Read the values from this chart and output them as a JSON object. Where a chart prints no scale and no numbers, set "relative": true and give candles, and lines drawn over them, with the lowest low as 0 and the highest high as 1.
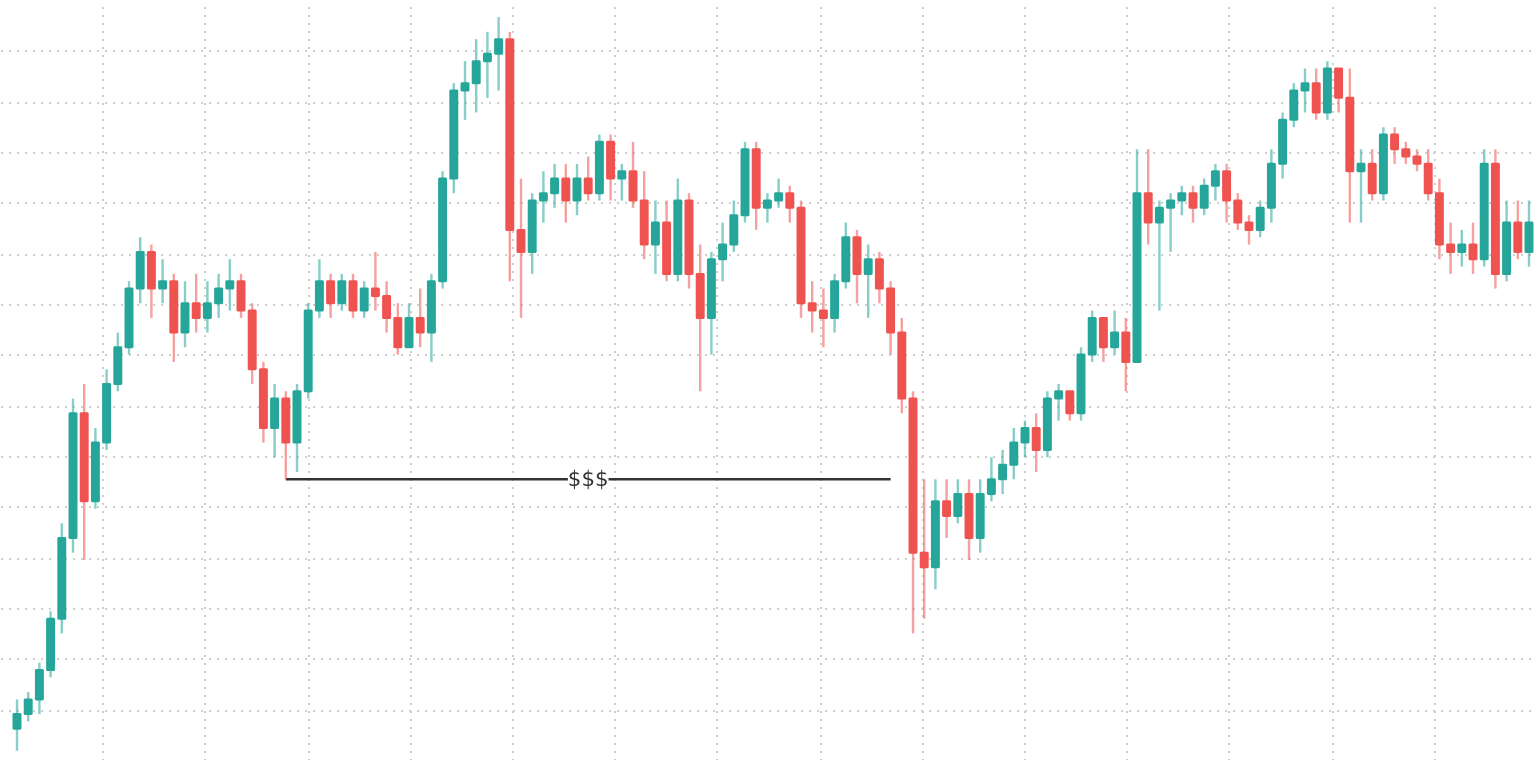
{
  "chart_data": {
    "type": "candlestick",
    "relative": true,
    "grid": true,
    "annotations": [
      "$$$"
    ],
    "categories": [
      null,
      null,
      null,
      null,
      null,
      null,
      null,
      null,
      null,
      null,
      null,
      null,
      null,
      null,
      null,
      null,
      null,
      null,
      null,
      null,
      null,
      null,
      null,
      null,
      null,
      null,
      null,
      null,
      null,
      null,
      null,
      null,
      null,
      null,
      null,
      null,
      null,
      null,
      null,
      null,
      null,
      null,
      null,
      null,
      null,
      null,
      null,
      null,
      null,
      null,
      null,
      null,
      null,
      null,
      null,
      null,
      null,
      null,
      null,
      null,
      null,
      null,
      null,
      null,
      null,
      null,
      null,
      null,
      null,
      null,
      null,
      null,
      null,
      null,
      null,
      null,
      null,
      null,
      null,
      null,
      null,
      null,
      null,
      null,
      null,
      null,
      null,
      null,
      null,
      null,
      null,
      null,
      null,
      null,
      null,
      null,
      null,
      null,
      null,
      null,
      null,
      null,
      null,
      null,
      null,
      null,
      null,
      null,
      null,
      null,
      null,
      null,
      null,
      null,
      null,
      null,
      null,
      null,
      null,
      null,
      null,
      null,
      null,
      null,
      null,
      null,
      null,
      null,
      null,
      null,
      null,
      null,
      null,
      null,
      null,
      null
    ],
    "ohlc": [
      [
        0.03,
        0.07,
        0,
        0.05
      ],
      [
        0.05,
        0.08,
        0.04,
        0.07
      ],
      [
        0.07,
        0.12,
        0.05,
        0.11
      ],
      [
        0.11,
        0.19,
        0.1,
        0.18
      ],
      [
        0.18,
        0.31,
        0.16,
        0.29
      ],
      [
        0.29,
        0.48,
        0.27,
        0.46
      ],
      [
        0.46,
        0.5,
        0.26,
        0.34
      ],
      [
        0.34,
        0.44,
        0.33,
        0.42
      ],
      [
        0.42,
        0.52,
        0.41,
        0.5
      ],
      [
        0.5,
        0.57,
        0.49,
        0.55
      ],
      [
        0.55,
        0.64,
        0.54,
        0.63
      ],
      [
        0.63,
        0.7,
        0.61,
        0.68
      ],
      [
        0.68,
        0.69,
        0.59,
        0.63
      ],
      [
        0.63,
        0.67,
        0.61,
        0.64
      ],
      [
        0.64,
        0.65,
        0.53,
        0.57
      ],
      [
        0.57,
        0.64,
        0.55,
        0.61
      ],
      [
        0.61,
        0.65,
        0.57,
        0.59
      ],
      [
        0.59,
        0.64,
        0.57,
        0.61
      ],
      [
        0.61,
        0.65,
        0.59,
        0.63
      ],
      [
        0.63,
        0.67,
        0.6,
        0.64
      ],
      [
        0.64,
        0.65,
        0.59,
        0.6
      ],
      [
        0.6,
        0.61,
        0.5,
        0.52
      ],
      [
        0.52,
        0.53,
        0.42,
        0.44
      ],
      [
        0.44,
        0.5,
        0.4,
        0.48
      ],
      [
        0.48,
        0.49,
        0.37,
        0.42
      ],
      [
        0.42,
        0.5,
        0.38,
        0.49
      ],
      [
        0.49,
        0.61,
        0.48,
        0.6
      ],
      [
        0.6,
        0.67,
        0.59,
        0.64
      ],
      [
        0.64,
        0.65,
        0.59,
        0.61
      ],
      [
        0.61,
        0.65,
        0.6,
        0.64
      ],
      [
        0.64,
        0.65,
        0.59,
        0.6
      ],
      [
        0.6,
        0.64,
        0.59,
        0.63
      ],
      [
        0.63,
        0.68,
        0.6,
        0.62
      ],
      [
        0.62,
        0.64,
        0.57,
        0.59
      ],
      [
        0.59,
        0.61,
        0.54,
        0.55
      ],
      [
        0.55,
        0.61,
        0.55,
        0.59
      ],
      [
        0.59,
        0.63,
        0.55,
        0.57
      ],
      [
        0.57,
        0.65,
        0.53,
        0.64
      ],
      [
        0.64,
        0.79,
        0.63,
        0.78
      ],
      [
        0.78,
        0.91,
        0.76,
        0.9
      ],
      [
        0.9,
        0.94,
        0.86,
        0.91
      ],
      [
        0.91,
        0.97,
        0.87,
        0.94
      ],
      [
        0.94,
        0.98,
        0.89,
        0.95
      ],
      [
        0.95,
        1,
        0.9,
        0.97
      ],
      [
        0.97,
        0.98,
        0.64,
        0.71
      ],
      [
        0.71,
        0.78,
        0.59,
        0.68
      ],
      [
        0.68,
        0.76,
        0.65,
        0.75
      ],
      [
        0.75,
        0.79,
        0.72,
        0.76
      ],
      [
        0.76,
        0.8,
        0.74,
        0.78
      ],
      [
        0.78,
        0.8,
        0.72,
        0.75
      ],
      [
        0.75,
        0.8,
        0.73,
        0.78
      ],
      [
        0.78,
        0.81,
        0.75,
        0.76
      ],
      [
        0.76,
        0.84,
        0.75,
        0.83
      ],
      [
        0.83,
        0.84,
        0.75,
        0.78
      ],
      [
        0.78,
        0.8,
        0.75,
        0.79
      ],
      [
        0.79,
        0.83,
        0.74,
        0.75
      ],
      [
        0.75,
        0.79,
        0.67,
        0.69
      ],
      [
        0.69,
        0.75,
        0.65,
        0.72
      ],
      [
        0.72,
        0.75,
        0.64,
        0.65
      ],
      [
        0.65,
        0.78,
        0.64,
        0.75
      ],
      [
        0.75,
        0.76,
        0.63,
        0.65
      ],
      [
        0.65,
        0.69,
        0.49,
        0.59
      ],
      [
        0.59,
        0.68,
        0.54,
        0.67
      ],
      [
        0.67,
        0.72,
        0.64,
        0.69
      ],
      [
        0.69,
        0.75,
        0.68,
        0.73
      ],
      [
        0.73,
        0.83,
        0.72,
        0.82
      ],
      [
        0.82,
        0.83,
        0.71,
        0.74
      ],
      [
        0.74,
        0.76,
        0.72,
        0.75
      ],
      [
        0.75,
        0.78,
        0.74,
        0.76
      ],
      [
        0.76,
        0.77,
        0.72,
        0.74
      ],
      [
        0.74,
        0.75,
        0.59,
        0.61
      ],
      [
        0.61,
        0.64,
        0.57,
        0.6
      ],
      [
        0.6,
        0.63,
        0.55,
        0.59
      ],
      [
        0.59,
        0.65,
        0.57,
        0.64
      ],
      [
        0.64,
        0.72,
        0.63,
        0.7
      ],
      [
        0.7,
        0.71,
        0.61,
        0.65
      ],
      [
        0.65,
        0.69,
        0.59,
        0.67
      ],
      [
        0.67,
        0.68,
        0.61,
        0.63
      ],
      [
        0.63,
        0.64,
        0.54,
        0.57
      ],
      [
        0.57,
        0.59,
        0.46,
        0.48
      ],
      [
        0.48,
        0.49,
        0.16,
        0.27
      ],
      [
        0.27,
        0.37,
        0.18,
        0.25
      ],
      [
        0.25,
        0.37,
        0.22,
        0.34
      ],
      [
        0.34,
        0.37,
        0.29,
        0.32
      ],
      [
        0.32,
        0.37,
        0.31,
        0.35
      ],
      [
        0.35,
        0.37,
        0.26,
        0.29
      ],
      [
        0.29,
        0.37,
        0.27,
        0.35
      ],
      [
        0.35,
        0.4,
        0.34,
        0.37
      ],
      [
        0.37,
        0.41,
        0.35,
        0.39
      ],
      [
        0.39,
        0.44,
        0.37,
        0.42
      ],
      [
        0.42,
        0.45,
        0.4,
        0.44
      ],
      [
        0.44,
        0.46,
        0.38,
        0.41
      ],
      [
        0.41,
        0.49,
        0.4,
        0.48
      ],
      [
        0.48,
        0.5,
        0.45,
        0.49
      ],
      [
        0.49,
        0.49,
        0.45,
        0.46
      ],
      [
        0.46,
        0.55,
        0.45,
        0.54
      ],
      [
        0.54,
        0.6,
        0.53,
        0.59
      ],
      [
        0.59,
        0.59,
        0.53,
        0.55
      ],
      [
        0.55,
        0.6,
        0.54,
        0.57
      ],
      [
        0.57,
        0.59,
        0.49,
        0.53
      ],
      [
        0.53,
        0.82,
        0.53,
        0.76
      ],
      [
        0.76,
        0.82,
        0.69,
        0.72
      ],
      [
        0.72,
        0.75,
        0.6,
        0.74
      ],
      [
        0.74,
        0.76,
        0.68,
        0.75
      ],
      [
        0.75,
        0.77,
        0.73,
        0.76
      ],
      [
        0.76,
        0.77,
        0.72,
        0.74
      ],
      [
        0.74,
        0.78,
        0.73,
        0.77
      ],
      [
        0.77,
        0.8,
        0.75,
        0.79
      ],
      [
        0.79,
        0.8,
        0.72,
        0.75
      ],
      [
        0.75,
        0.76,
        0.71,
        0.72
      ],
      [
        0.72,
        0.73,
        0.69,
        0.71
      ],
      [
        0.71,
        0.75,
        0.7,
        0.74
      ],
      [
        0.74,
        0.82,
        0.72,
        0.8
      ],
      [
        0.8,
        0.87,
        0.78,
        0.86
      ],
      [
        0.86,
        0.91,
        0.85,
        0.9
      ],
      [
        0.9,
        0.93,
        0.87,
        0.91
      ],
      [
        0.91,
        0.93,
        0.86,
        0.87
      ],
      [
        0.87,
        0.94,
        0.86,
        0.93
      ],
      [
        0.93,
        0.93,
        0.87,
        0.89
      ],
      [
        0.89,
        0.93,
        0.72,
        0.79
      ],
      [
        0.79,
        0.82,
        0.72,
        0.8
      ],
      [
        0.8,
        0.82,
        0.75,
        0.76
      ],
      [
        0.76,
        0.85,
        0.75,
        0.84
      ],
      [
        0.84,
        0.85,
        0.8,
        0.82
      ],
      [
        0.82,
        0.83,
        0.8,
        0.81
      ],
      [
        0.81,
        0.82,
        0.79,
        0.8
      ],
      [
        0.8,
        0.82,
        0.75,
        0.76
      ],
      [
        0.76,
        0.78,
        0.67,
        0.69
      ],
      [
        0.69,
        0.72,
        0.65,
        0.68
      ],
      [
        0.68,
        0.71,
        0.66,
        0.69
      ],
      [
        0.69,
        0.72,
        0.65,
        0.67
      ],
      [
        0.67,
        0.82,
        0.66,
        0.8
      ],
      [
        0.8,
        0.82,
        0.63,
        0.65
      ],
      [
        0.65,
        0.75,
        0.64,
        0.72
      ],
      [
        0.72,
        0.75,
        0.67,
        0.68
      ],
      [
        0.68,
        0.75,
        0.66,
        0.72
      ]
    ],
    "series": [
      {
        "type": "line",
        "color": "#333333",
        "values": [
          null,
          null,
          null,
          null,
          null,
          null,
          null,
          null,
          null,
          null,
          null,
          null,
          null,
          null,
          null,
          null,
          null,
          null,
          null,
          null,
          null,
          null,
          null,
          null,
          0.37,
          0.37,
          0.37,
          0.37,
          0.37,
          0.37,
          0.37,
          0.37,
          0.37,
          0.37,
          0.37,
          0.37,
          0.37,
          0.37,
          0.37,
          0.37,
          0.37,
          0.37,
          0.37,
          0.37,
          0.37,
          0.37,
          0.37,
          0.37,
          0.37,
          0.37,
          0.37,
          0.37,
          0.37,
          0.37,
          0.37,
          0.37,
          0.37,
          0.37,
          0.37,
          0.37,
          0.37,
          0.37,
          0.37,
          0.37,
          0.37,
          0.37,
          0.37,
          0.37,
          0.37,
          0.37,
          0.37,
          0.37,
          0.37,
          0.37,
          0.37,
          0.37,
          0.37,
          0.37,
          0.37,
          null,
          null,
          null,
          null,
          null,
          null,
          null,
          null,
          null,
          null,
          null,
          null,
          null,
          null,
          null,
          null,
          null,
          null,
          null,
          null,
          null,
          null,
          null,
          null,
          null,
          null,
          null,
          null,
          null,
          null,
          null,
          null,
          null,
          null,
          null,
          null,
          null,
          null,
          null,
          null,
          null,
          null,
          null,
          null,
          null,
          null,
          null,
          null,
          null,
          null,
          null,
          null,
          null,
          null,
          null,
          null,
          null
        ]
      }
    ]
  }
}
